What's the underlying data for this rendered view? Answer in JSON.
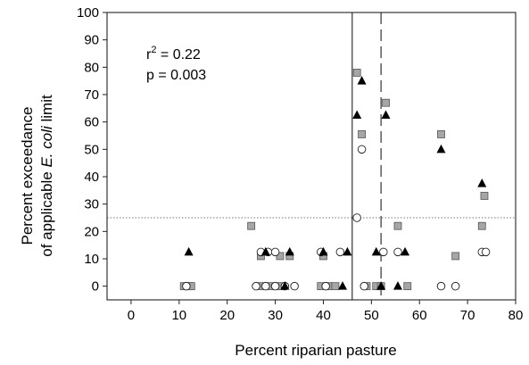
{
  "chart_data": {
    "type": "scatter",
    "xlabel": "Percent riparian pasture",
    "ylabel_line1": "Percent exceedance",
    "ylabel_line2_prefix": "of applicable ",
    "ylabel_line2_italic": "E. coli",
    "ylabel_line2_suffix": " limit",
    "xlim": [
      -5,
      80
    ],
    "ylim": [
      -5,
      100
    ],
    "xticks": [
      0,
      10,
      20,
      30,
      40,
      50,
      60,
      70,
      80
    ],
    "yticks": [
      0,
      10,
      20,
      30,
      40,
      50,
      60,
      70,
      80,
      90,
      100
    ],
    "annotations": {
      "r2_prefix": "r",
      "r2_sup": "2",
      "r2_value": " = 0.22",
      "p_text": "p = 0.003"
    },
    "reference_lines": {
      "vertical_solid_x": 46,
      "vertical_dashed_x": 52,
      "horizontal_dotted_y": 25
    },
    "series": [
      {
        "marker": "triangle",
        "color": "#000000",
        "points": [
          [
            12,
            12.5
          ],
          [
            28,
            12.5
          ],
          [
            33,
            12.5
          ],
          [
            40,
            12.5
          ],
          [
            45,
            12.5
          ],
          [
            47,
            62.5
          ],
          [
            48,
            75
          ],
          [
            53,
            62.5
          ],
          [
            51,
            12.5
          ],
          [
            57,
            12.5
          ],
          [
            64.5,
            50
          ],
          [
            73,
            37.5
          ],
          [
            55.5,
            0
          ],
          [
            32,
            0
          ],
          [
            44,
            0
          ],
          [
            52,
            0
          ]
        ]
      },
      {
        "marker": "square",
        "color": "#a6a6a6",
        "points": [
          [
            11,
            0
          ],
          [
            12,
            0
          ],
          [
            12.5,
            0
          ],
          [
            25,
            22
          ],
          [
            27,
            11
          ],
          [
            27,
            0
          ],
          [
            29,
            0
          ],
          [
            31,
            11
          ],
          [
            33,
            11
          ],
          [
            31,
            0
          ],
          [
            40,
            11
          ],
          [
            39.5,
            0
          ],
          [
            41,
            0
          ],
          [
            42.5,
            0
          ],
          [
            47,
            78
          ],
          [
            48,
            55.5
          ],
          [
            49,
            0
          ],
          [
            51,
            0
          ],
          [
            53,
            67
          ],
          [
            52,
            0
          ],
          [
            55.5,
            22
          ],
          [
            57.5,
            0
          ],
          [
            64.5,
            55.5
          ],
          [
            67.5,
            11
          ],
          [
            73.5,
            33
          ],
          [
            73,
            22
          ]
        ]
      },
      {
        "marker": "circle",
        "color": "#ffffff",
        "points": [
          [
            11.5,
            0
          ],
          [
            27,
            12.5
          ],
          [
            28.5,
            12.5
          ],
          [
            30,
            12.5
          ],
          [
            26,
            0
          ],
          [
            28,
            0
          ],
          [
            30,
            0
          ],
          [
            32,
            0
          ],
          [
            34,
            0
          ],
          [
            39.5,
            12.5
          ],
          [
            40.5,
            0
          ],
          [
            43.5,
            12.5
          ],
          [
            47,
            25
          ],
          [
            48,
            50
          ],
          [
            48.5,
            0
          ],
          [
            52.5,
            12.5
          ],
          [
            55.5,
            12.5
          ],
          [
            64.5,
            0
          ],
          [
            67.5,
            0
          ],
          [
            73,
            12.5
          ],
          [
            73.8,
            12.5
          ]
        ]
      }
    ]
  }
}
